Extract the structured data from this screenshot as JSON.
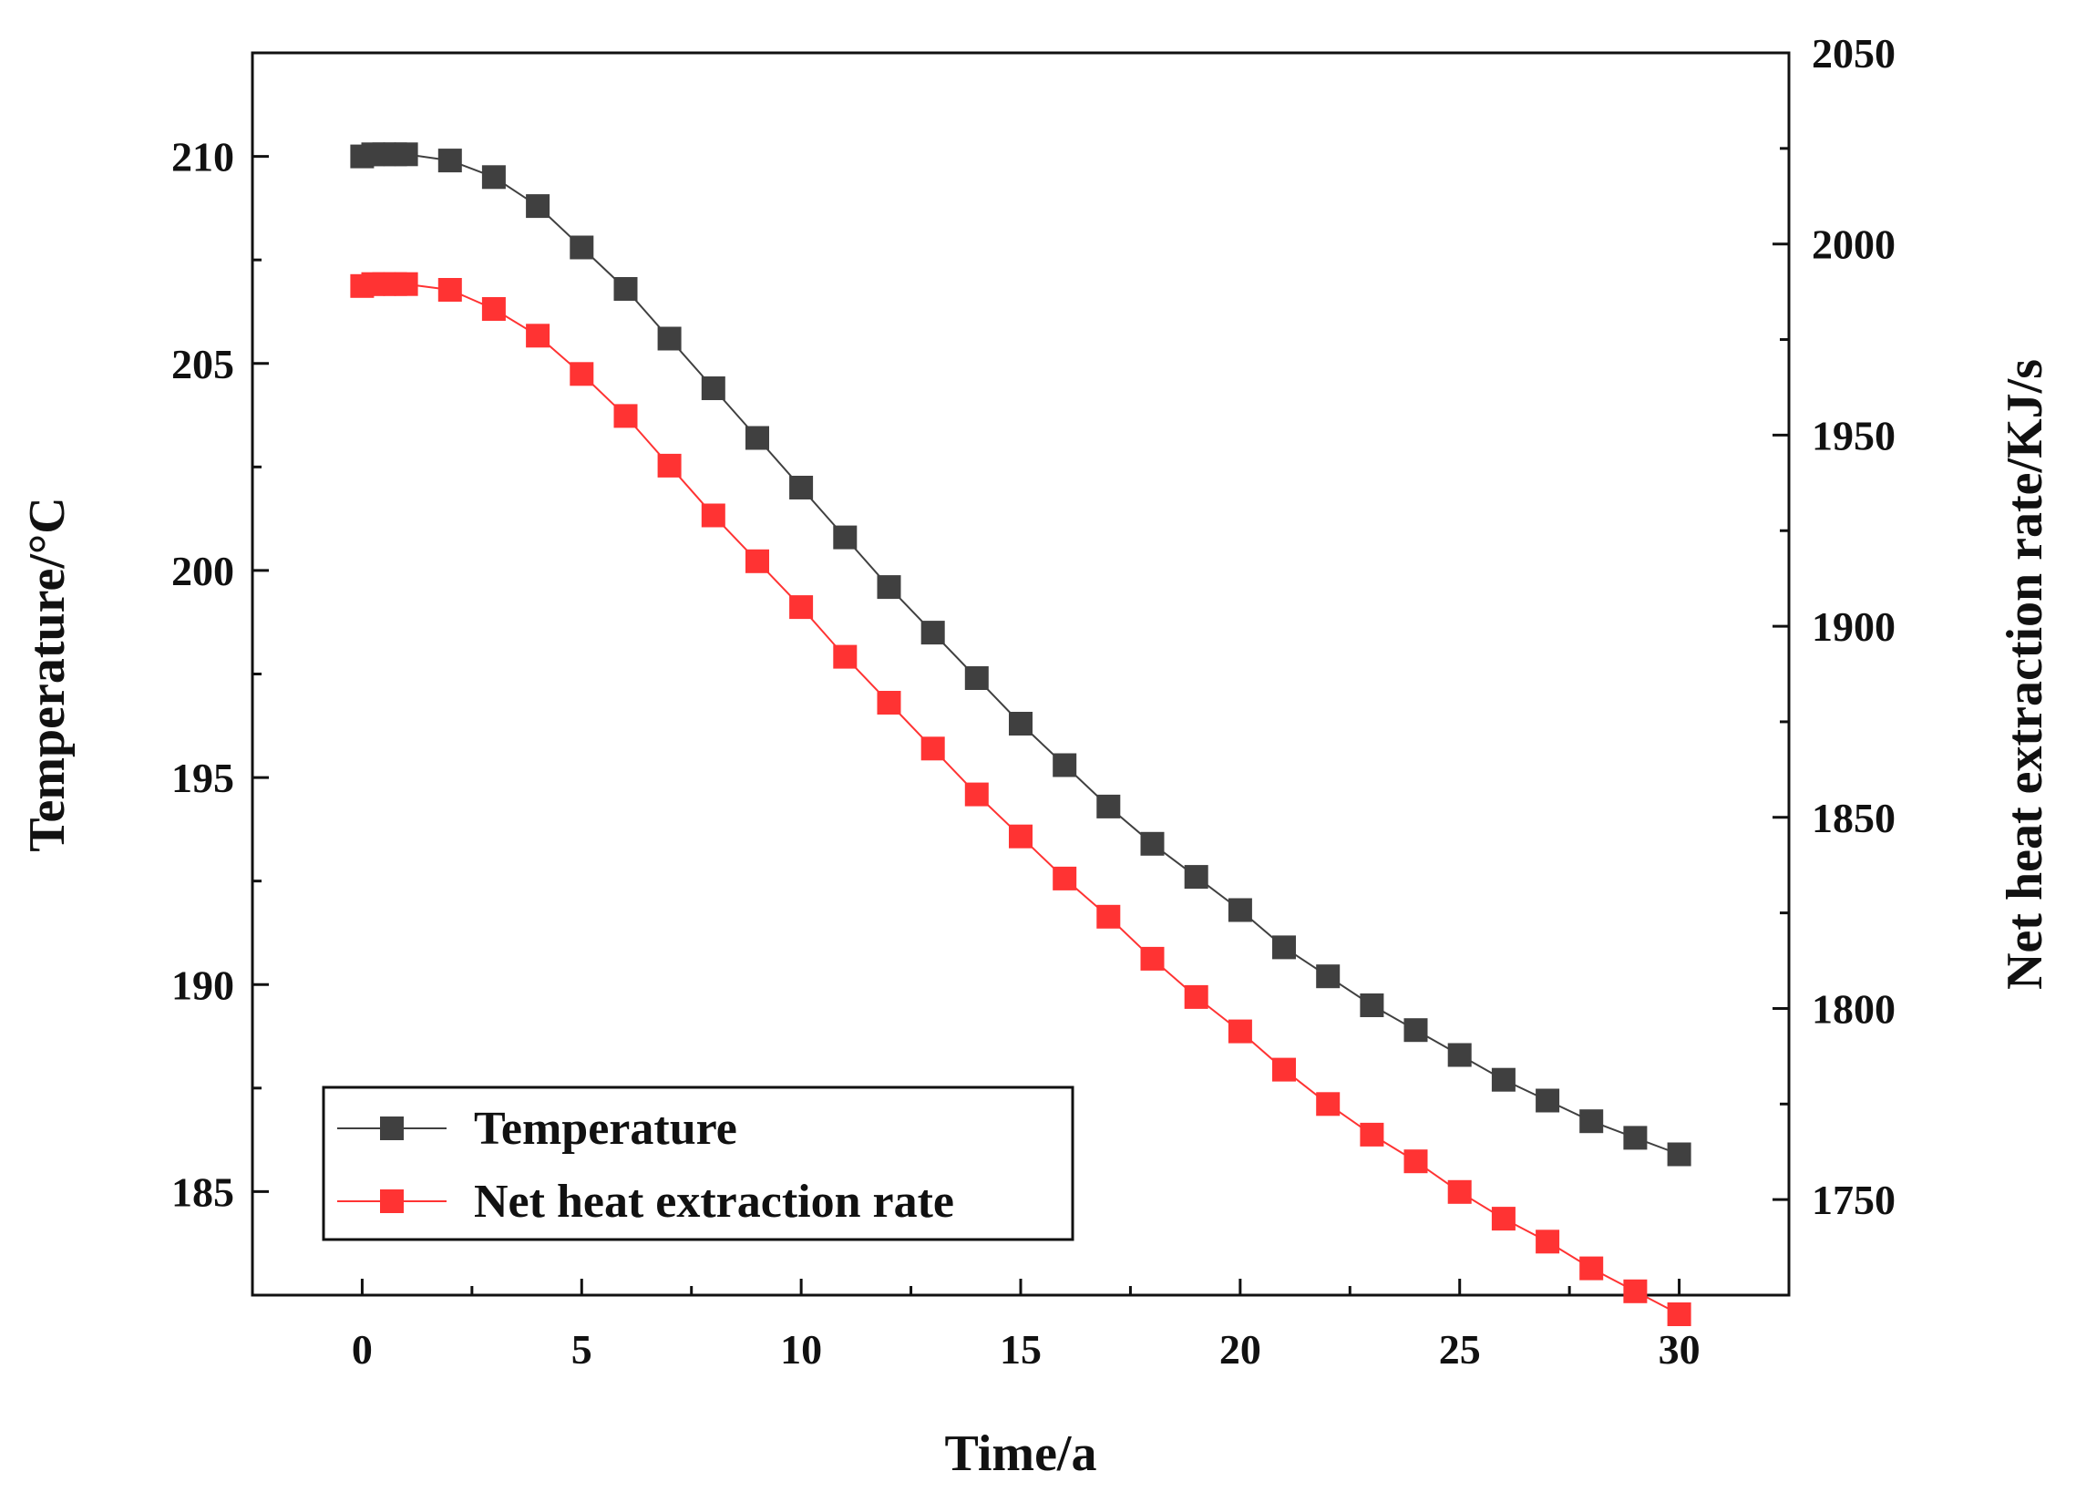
{
  "chart_data": {
    "type": "line",
    "title": "",
    "xlabel": "Time/a",
    "ylabel": "Temperature/°C",
    "ylabel_right": "Net heat extraction rate/KJ/s",
    "xlim": [
      -2.5,
      32.5
    ],
    "ylim": [
      182.5,
      212.5
    ],
    "ylim_right": [
      1725,
      2050
    ],
    "xticks": [
      0,
      5,
      10,
      15,
      20,
      25,
      30
    ],
    "yticks": [
      185,
      190,
      195,
      200,
      205,
      210
    ],
    "yticks_right": [
      1750,
      1800,
      1850,
      1900,
      1950,
      2000,
      2050
    ],
    "grid": false,
    "legend_position": "bottom-left",
    "x": [
      0,
      0.25,
      0.5,
      0.75,
      1,
      2,
      3,
      4,
      5,
      6,
      7,
      8,
      9,
      10,
      11,
      12,
      13,
      14,
      15,
      16,
      17,
      18,
      19,
      20,
      21,
      22,
      23,
      24,
      25,
      26,
      27,
      28,
      29,
      30
    ],
    "series": [
      {
        "name": "Temperature",
        "axis": "left",
        "color": "#404040",
        "values": [
          210.0,
          210.05,
          210.05,
          210.05,
          210.05,
          209.9,
          209.5,
          208.8,
          207.8,
          206.8,
          205.6,
          204.4,
          203.2,
          202.0,
          200.8,
          199.6,
          198.5,
          197.4,
          196.3,
          195.3,
          194.3,
          193.4,
          192.6,
          191.8,
          190.9,
          190.2,
          189.5,
          188.9,
          188.3,
          187.7,
          187.2,
          186.7,
          186.3,
          185.9
        ]
      },
      {
        "name": "Net heat extraction rate",
        "axis": "right",
        "color": "#ff3333",
        "values": [
          1989,
          1989.5,
          1989.5,
          1989.5,
          1989.5,
          1988,
          1983,
          1976,
          1966,
          1955,
          1942,
          1929,
          1917,
          1905,
          1892,
          1880,
          1868,
          1856,
          1845,
          1834,
          1824,
          1813,
          1803,
          1794,
          1784,
          1775,
          1767,
          1760,
          1752,
          1745,
          1739,
          1732,
          1726,
          1720
        ]
      }
    ]
  }
}
